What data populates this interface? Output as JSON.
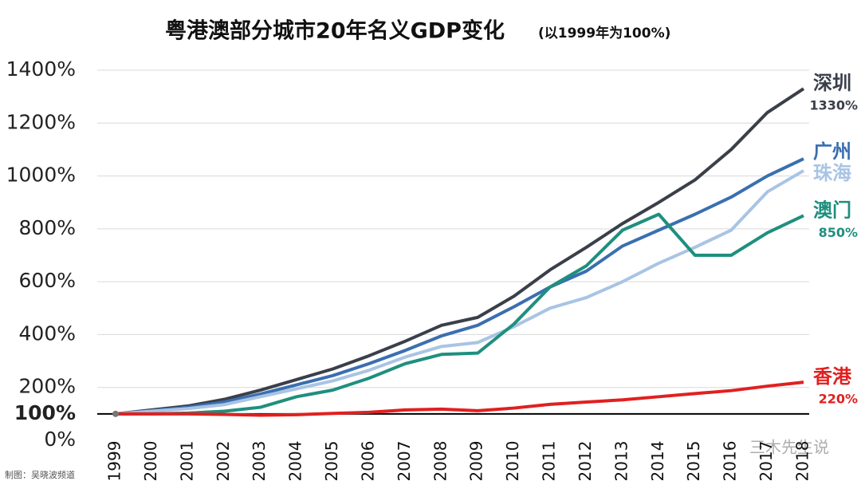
{
  "chart_data": {
    "type": "line",
    "title": "粤港澳部分城市20年名义GDP变化",
    "subtitle": "(以1999年为100%)",
    "credit": "制图：吴晓波频道",
    "watermark": "三木先生说",
    "categories": [
      "1999",
      "2000",
      "2001",
      "2002",
      "2003",
      "2004",
      "2005",
      "2006",
      "2007",
      "2008",
      "2009",
      "2010",
      "2011",
      "2012",
      "2013",
      "2014",
      "2015",
      "2016",
      "2017",
      "2018"
    ],
    "ylim": [
      0,
      1400
    ],
    "yticks": [
      {
        "value": 0,
        "label": "0%"
      },
      {
        "value": 100,
        "label": "100%"
      },
      {
        "value": 200,
        "label": "200%"
      },
      {
        "value": 400,
        "label": "400%"
      },
      {
        "value": 600,
        "label": "600%"
      },
      {
        "value": 800,
        "label": "800%"
      },
      {
        "value": 1000,
        "label": "1000%"
      },
      {
        "value": 1200,
        "label": "1200%"
      },
      {
        "value": 1400,
        "label": "1400%"
      }
    ],
    "grid": true,
    "series": [
      {
        "name": "深圳",
        "color": "#3a3f4a",
        "values": [
          100,
          115,
          130,
          155,
          190,
          230,
          270,
          320,
          375,
          435,
          465,
          545,
          645,
          730,
          820,
          900,
          985,
          1100,
          1240,
          1330
        ],
        "value_labels": [
          null,
          null,
          null,
          null,
          null,
          null,
          null,
          null,
          null,
          null,
          null,
          null,
          null,
          null,
          null,
          null,
          null,
          null,
          null,
          "1330%"
        ]
      },
      {
        "name": "广州",
        "color": "#3a6fb0",
        "values": [
          100,
          112,
          125,
          145,
          175,
          210,
          245,
          290,
          340,
          395,
          435,
          505,
          580,
          640,
          735,
          795,
          855,
          920,
          1000,
          1065
        ]
      },
      {
        "name": "珠海",
        "color": "#a9c4e4",
        "values": [
          100,
          110,
          120,
          135,
          165,
          195,
          225,
          265,
          315,
          355,
          370,
          430,
          500,
          540,
          600,
          670,
          730,
          795,
          940,
          1020
        ]
      },
      {
        "name": "澳门",
        "color": "#1f8f7e",
        "values": [
          100,
          100,
          103,
          110,
          125,
          165,
          190,
          235,
          290,
          325,
          330,
          440,
          580,
          660,
          795,
          855,
          700,
          700,
          785,
          850
        ],
        "value_labels": [
          null,
          null,
          null,
          null,
          null,
          null,
          null,
          null,
          null,
          null,
          null,
          null,
          null,
          null,
          null,
          null,
          null,
          null,
          null,
          "850%"
        ]
      },
      {
        "name": "香港",
        "color": "#e02020",
        "values": [
          100,
          100,
          100,
          98,
          95,
          97,
          102,
          106,
          115,
          118,
          112,
          122,
          136,
          145,
          153,
          165,
          177,
          188,
          205,
          220
        ],
        "value_labels": [
          null,
          null,
          null,
          null,
          null,
          null,
          null,
          null,
          null,
          null,
          null,
          null,
          null,
          null,
          null,
          null,
          null,
          null,
          null,
          "220%"
        ]
      }
    ]
  }
}
